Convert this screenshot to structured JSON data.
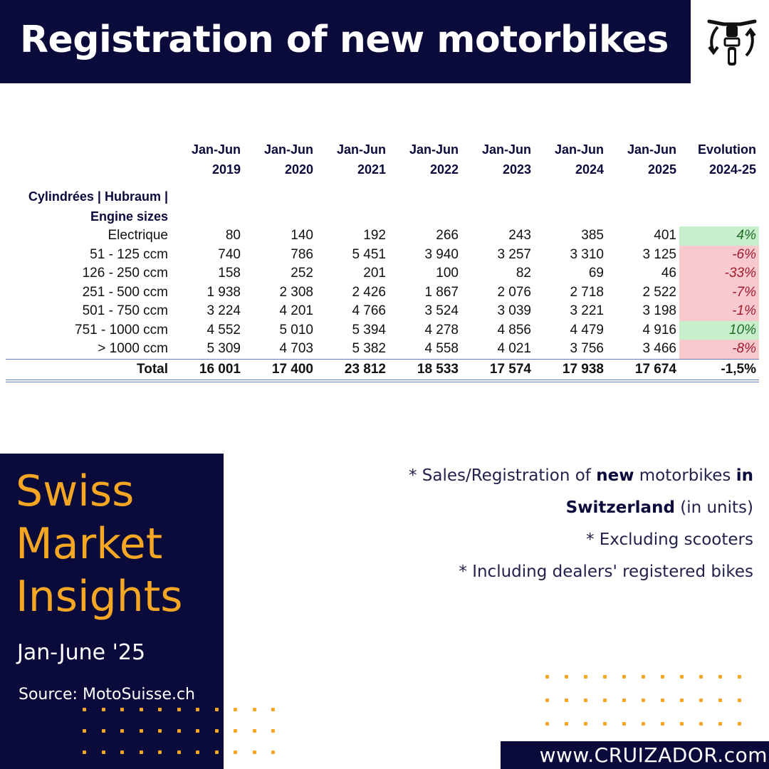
{
  "header": {
    "title": "Registration of new motorbikes",
    "logo_icon": "motorbike-cycle-icon"
  },
  "table": {
    "columns": [
      {
        "line1": "Jan-Jun",
        "line2": "2019"
      },
      {
        "line1": "Jan-Jun",
        "line2": "2020"
      },
      {
        "line1": "Jan-Jun",
        "line2": "2021"
      },
      {
        "line1": "Jan-Jun",
        "line2": "2022"
      },
      {
        "line1": "Jan-Jun",
        "line2": "2023"
      },
      {
        "line1": "Jan-Jun",
        "line2": "2024"
      },
      {
        "line1": "Jan-Jun",
        "line2": "2025"
      },
      {
        "line1": "Evolution",
        "line2": "2024-25"
      }
    ],
    "row_header_line1": "Cylindrées | Hubraum |",
    "row_header_line2": "Engine sizes",
    "rows": [
      {
        "label": "Electrique",
        "values": [
          "80",
          "140",
          "192",
          "266",
          "243",
          "385",
          "401"
        ],
        "evolution": "4%",
        "trend": "pos"
      },
      {
        "label": "51 - 125 ccm",
        "values": [
          "740",
          "786",
          "5 451",
          "3 940",
          "3 257",
          "3 310",
          "3 125"
        ],
        "evolution": "-6%",
        "trend": "neg"
      },
      {
        "label": "126 - 250 ccm",
        "values": [
          "158",
          "252",
          "201",
          "100",
          "82",
          "69",
          "46"
        ],
        "evolution": "-33%",
        "trend": "neg"
      },
      {
        "label": "251 - 500 ccm",
        "values": [
          "1 938",
          "2 308",
          "2 426",
          "1 867",
          "2 076",
          "2 718",
          "2 522"
        ],
        "evolution": "-7%",
        "trend": "neg"
      },
      {
        "label": "501 - 750 ccm",
        "values": [
          "3 224",
          "4 201",
          "4 766",
          "3 524",
          "3 039",
          "3 221",
          "3 198"
        ],
        "evolution": "-1%",
        "trend": "neg"
      },
      {
        "label": "751 - 1000 ccm",
        "values": [
          "4 552",
          "5 010",
          "5 394",
          "4 278",
          "4 856",
          "4 479",
          "4 916"
        ],
        "evolution": "10%",
        "trend": "pos"
      },
      {
        "label": "> 1000 ccm",
        "values": [
          "5 309",
          "4 703",
          "5 382",
          "4 558",
          "4 021",
          "3 756",
          "3 466"
        ],
        "evolution": "-8%",
        "trend": "neg"
      }
    ],
    "total": {
      "label": "Total",
      "values": [
        "16 001",
        "17 400",
        "23 812",
        "18 533",
        "17 574",
        "17 938",
        "17 674"
      ],
      "evolution": "-1,5%"
    }
  },
  "insights": {
    "title_line1": "Swiss",
    "title_line2": "Market",
    "title_line3": "Insights",
    "period": "Jan-June '25",
    "source": "Source: MotoSuisse.ch"
  },
  "notes": {
    "n1_a": "* Sales/Registration of ",
    "n1_b": "new",
    "n1_c": " motorbikes ",
    "n1_d": "in",
    "n2_a": "Switzerland",
    "n2_b": " (in units)",
    "n3": "* Excluding scooters",
    "n4": "* Including dealers' registered bikes"
  },
  "footer": {
    "website": "www.CRUIZADOR.com"
  },
  "colors": {
    "navy": "#0b0b3b",
    "accent": "#f5a623",
    "positive_bg": "#c8efcc",
    "negative_bg": "#f8c9cf"
  }
}
